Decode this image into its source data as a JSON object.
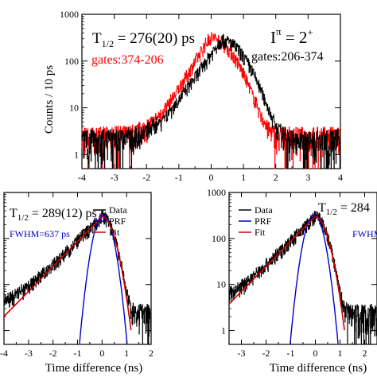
{
  "chart_data": [
    {
      "type": "line",
      "scale": "log",
      "xlim": [
        -4,
        4
      ],
      "ylim": [
        0.5,
        1000
      ],
      "xticks": [
        "-4",
        "-3",
        "-2",
        "-1",
        "0",
        "1",
        "2",
        "3",
        "4"
      ],
      "yticks": [
        "1",
        "10",
        "100",
        "1000"
      ],
      "ylabel": "Counts / 10 ps",
      "annotations": {
        "half_life_sym": "T",
        "half_life_sub": "1/2",
        "half_life_val": " = 276(20) ps",
        "gate_red": "gates:374-206",
        "gate_black": "gates:206-374",
        "spin_sym": "I",
        "spin_sup": "π",
        "spin_val": " = 2",
        "spin_parity": "+"
      },
      "series": [
        {
          "color": "#ff0000",
          "peak_x": -0.05,
          "peak_y": 320,
          "sigma": 0.55,
          "tail": 2.2,
          "background": 2.3
        },
        {
          "color": "#000000",
          "peak_x": 0.3,
          "peak_y": 280,
          "sigma": 0.55,
          "tail": 1.9,
          "background": 2.0
        }
      ]
    },
    {
      "type": "line",
      "scale": "log",
      "xlim": [
        -4,
        2
      ],
      "ylim": [
        0.5,
        1000
      ],
      "xticks": [
        "-4",
        "-3",
        "-2",
        "-1",
        "0",
        "1",
        "2"
      ],
      "yticks": [
        "1",
        "10",
        "100",
        "1000"
      ],
      "xlabel": "Time difference (ns)",
      "annotations": {
        "half_life_sym": "T",
        "half_life_sub": "1/2",
        "half_life_val": " = 289(12) ps",
        "fwhm": "FWHM=637 ps"
      },
      "legend": [
        "Data",
        "PRF",
        "Fit"
      ],
      "series": [
        {
          "name": "Data",
          "color": "#000000",
          "peak_x": 0.0,
          "peak_y": 300,
          "background": 2.2
        },
        {
          "name": "PRF",
          "color": "#0000cc",
          "peak_x": 0.05,
          "peak_y": 330,
          "sigma": 0.27
        },
        {
          "name": "Fit",
          "color": "#cc0000",
          "peak_x": 0.0,
          "peak_y": 300
        }
      ]
    },
    {
      "type": "line",
      "scale": "log",
      "xlim": [
        -3.5,
        2.5
      ],
      "ylim": [
        0.5,
        1000
      ],
      "xticks": [
        "-3",
        "-2",
        "-1",
        "0",
        "1",
        "2"
      ],
      "yticks": [
        "1",
        "10",
        "100",
        "1000"
      ],
      "xlabel": "Time difference (ns)",
      "annotations": {
        "half_life_sym": "T",
        "half_life_sub": "1/2",
        "half_life_val": " = 284",
        "fwhm": "FWHM"
      },
      "legend": [
        "Data",
        "PRF",
        "Fit"
      ],
      "series": [
        {
          "name": "Data",
          "color": "#000000",
          "peak_x": 0.0,
          "peak_y": 300,
          "background": 2.2
        },
        {
          "name": "PRF",
          "color": "#0000cc",
          "peak_x": -0.05,
          "peak_y": 330,
          "sigma": 0.27
        },
        {
          "name": "Fit",
          "color": "#cc0000",
          "peak_x": 0.0,
          "peak_y": 300
        }
      ]
    }
  ]
}
